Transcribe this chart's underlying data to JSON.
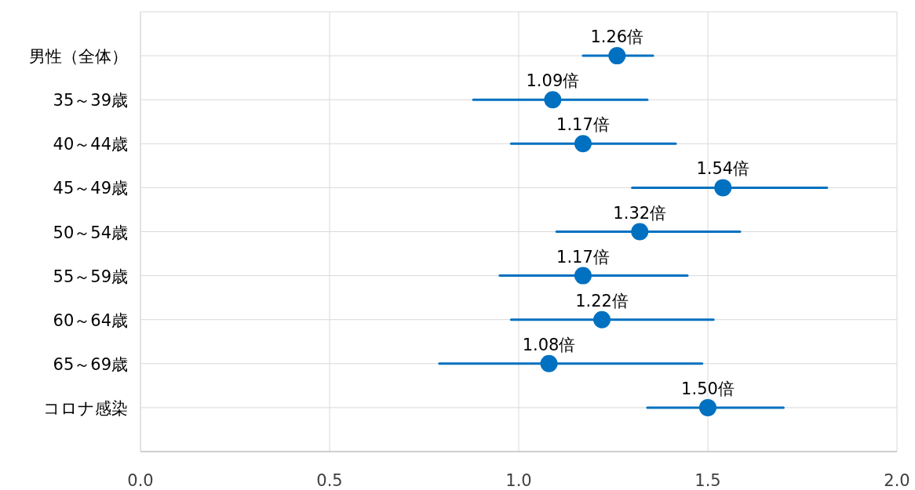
{
  "chart_data": {
    "type": "scatter",
    "orientation": "horizontal",
    "categories": [
      "男性（全体）",
      "35～39歳",
      "40～44歳",
      "45～49歳",
      "50～54歳",
      "55～59歳",
      "60～64歳",
      "65～69歳",
      "コロナ感染"
    ],
    "values": [
      1.26,
      1.09,
      1.17,
      1.54,
      1.32,
      1.17,
      1.22,
      1.08,
      1.5
    ],
    "errors": [
      [
        1.17,
        1.355
      ],
      [
        0.88,
        1.34
      ],
      [
        0.98,
        1.415
      ],
      [
        1.3,
        1.815
      ],
      [
        1.1,
        1.585
      ],
      [
        0.95,
        1.446
      ],
      [
        0.98,
        1.515
      ],
      [
        0.79,
        1.485
      ],
      [
        1.34,
        1.7
      ]
    ],
    "value_labels": [
      "1.26倍",
      "1.09倍",
      "1.17倍",
      "1.54倍",
      "1.32倍",
      "1.17倍",
      "1.22倍",
      "1.08倍",
      "1.50倍"
    ],
    "color": "#0070c0",
    "marker": "circle",
    "grid": true,
    "xlim": [
      0,
      2
    ],
    "xticks": [
      {
        "value": 0,
        "label": "0.0"
      },
      {
        "value": 0.5,
        "label": "0.5"
      },
      {
        "value": 1,
        "label": "1.0"
      },
      {
        "value": 1.5,
        "label": "1.5"
      },
      {
        "value": 2,
        "label": "2.0"
      }
    ]
  }
}
